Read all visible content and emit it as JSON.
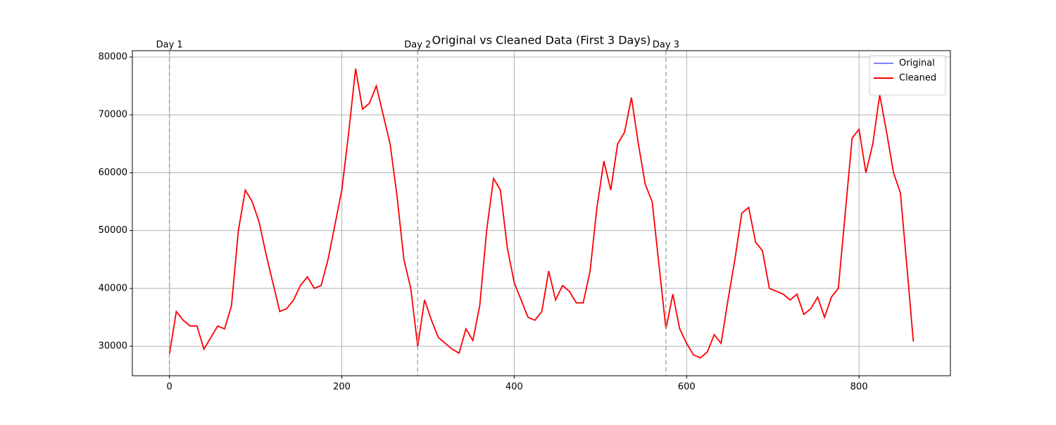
{
  "chart_data": {
    "type": "line",
    "title": "Original vs Cleaned Data (First 3 Days)",
    "x": [
      0,
      8,
      16,
      24,
      32,
      40,
      48,
      56,
      64,
      72,
      80,
      88,
      96,
      104,
      112,
      120,
      128,
      136,
      144,
      152,
      160,
      168,
      176,
      184,
      192,
      200,
      208,
      216,
      224,
      232,
      240,
      248,
      256,
      264,
      272,
      280,
      288,
      296,
      304,
      312,
      320,
      328,
      336,
      344,
      352,
      360,
      368,
      376,
      384,
      392,
      400,
      408,
      416,
      424,
      432,
      440,
      448,
      456,
      464,
      472,
      480,
      488,
      496,
      504,
      512,
      520,
      528,
      536,
      544,
      552,
      560,
      568,
      576,
      584,
      592,
      600,
      608,
      616,
      624,
      632,
      640,
      648,
      656,
      664,
      672,
      680,
      688,
      696,
      704,
      712,
      720,
      728,
      736,
      744,
      752,
      760,
      768,
      776,
      784,
      792,
      800,
      808,
      816,
      824,
      832,
      840,
      848,
      856,
      863
    ],
    "series": [
      {
        "name": "Original",
        "color": "#8080ff",
        "values": [
          28600,
          36000,
          34500,
          33500,
          33500,
          29500,
          31500,
          33500,
          33000,
          37000,
          50000,
          57000,
          55000,
          51500,
          46000,
          41000,
          36000,
          36500,
          38000,
          40500,
          42000,
          40000,
          40500,
          45000,
          51000,
          57000,
          67000,
          78000,
          71000,
          72000,
          75000,
          70000,
          65000,
          56000,
          45000,
          40000,
          30000,
          38000,
          34500,
          31500,
          30500,
          29500,
          28800,
          33000,
          31000,
          37000,
          50000,
          59000,
          57000,
          47000,
          41000,
          38000,
          35000,
          34500,
          36000,
          43000,
          38000,
          40500,
          39500,
          37500,
          37500,
          43000,
          54000,
          62000,
          57000,
          65000,
          67000,
          73000,
          65000,
          58000,
          55000,
          44000,
          33000,
          39000,
          33000,
          30500,
          28500,
          28000,
          29000,
          32000,
          30500,
          38000,
          45000,
          53000,
          54000,
          48000,
          46500,
          40000,
          39500,
          39000,
          38000,
          39000,
          35500,
          36500,
          38500,
          35000,
          38500,
          40000,
          53000,
          66000,
          67500,
          60000,
          65000,
          73500,
          67000,
          60000,
          56500,
          43000,
          30800
        ]
      },
      {
        "name": "Cleaned",
        "color": "#ff0000",
        "values": [
          28600,
          36000,
          34500,
          33500,
          33500,
          29500,
          31500,
          33500,
          33000,
          37000,
          50000,
          57000,
          55000,
          51500,
          46000,
          41000,
          36000,
          36500,
          38000,
          40500,
          42000,
          40000,
          40500,
          45000,
          51000,
          57000,
          67000,
          78000,
          71000,
          72000,
          75000,
          70000,
          65000,
          56000,
          45000,
          40000,
          30000,
          38000,
          34500,
          31500,
          30500,
          29500,
          28800,
          33000,
          31000,
          37000,
          50000,
          59000,
          57000,
          47000,
          41000,
          38000,
          35000,
          34500,
          36000,
          43000,
          38000,
          40500,
          39500,
          37500,
          37500,
          43000,
          54000,
          62000,
          57000,
          65000,
          67000,
          73000,
          65000,
          58000,
          55000,
          44000,
          33000,
          39000,
          33000,
          30500,
          28500,
          28000,
          29000,
          32000,
          30500,
          38000,
          45000,
          53000,
          54000,
          48000,
          46500,
          40000,
          39500,
          39000,
          38000,
          39000,
          35500,
          36500,
          38500,
          35000,
          38500,
          40000,
          53000,
          66000,
          67500,
          60000,
          65000,
          73500,
          67000,
          60000,
          56500,
          43000,
          30800
        ]
      }
    ],
    "day_lines": [
      {
        "x": 0,
        "label": "Day 1"
      },
      {
        "x": 288,
        "label": "Day 2"
      },
      {
        "x": 576,
        "label": "Day 3"
      }
    ],
    "day_line_color": "#aaaaaa",
    "xlim": [
      -43,
      906
    ],
    "ylim": [
      24900,
      81100
    ],
    "xticks": [
      0,
      200,
      400,
      600,
      800
    ],
    "yticks": [
      30000,
      40000,
      50000,
      60000,
      70000,
      80000
    ],
    "grid": true,
    "legend": "upper right"
  }
}
